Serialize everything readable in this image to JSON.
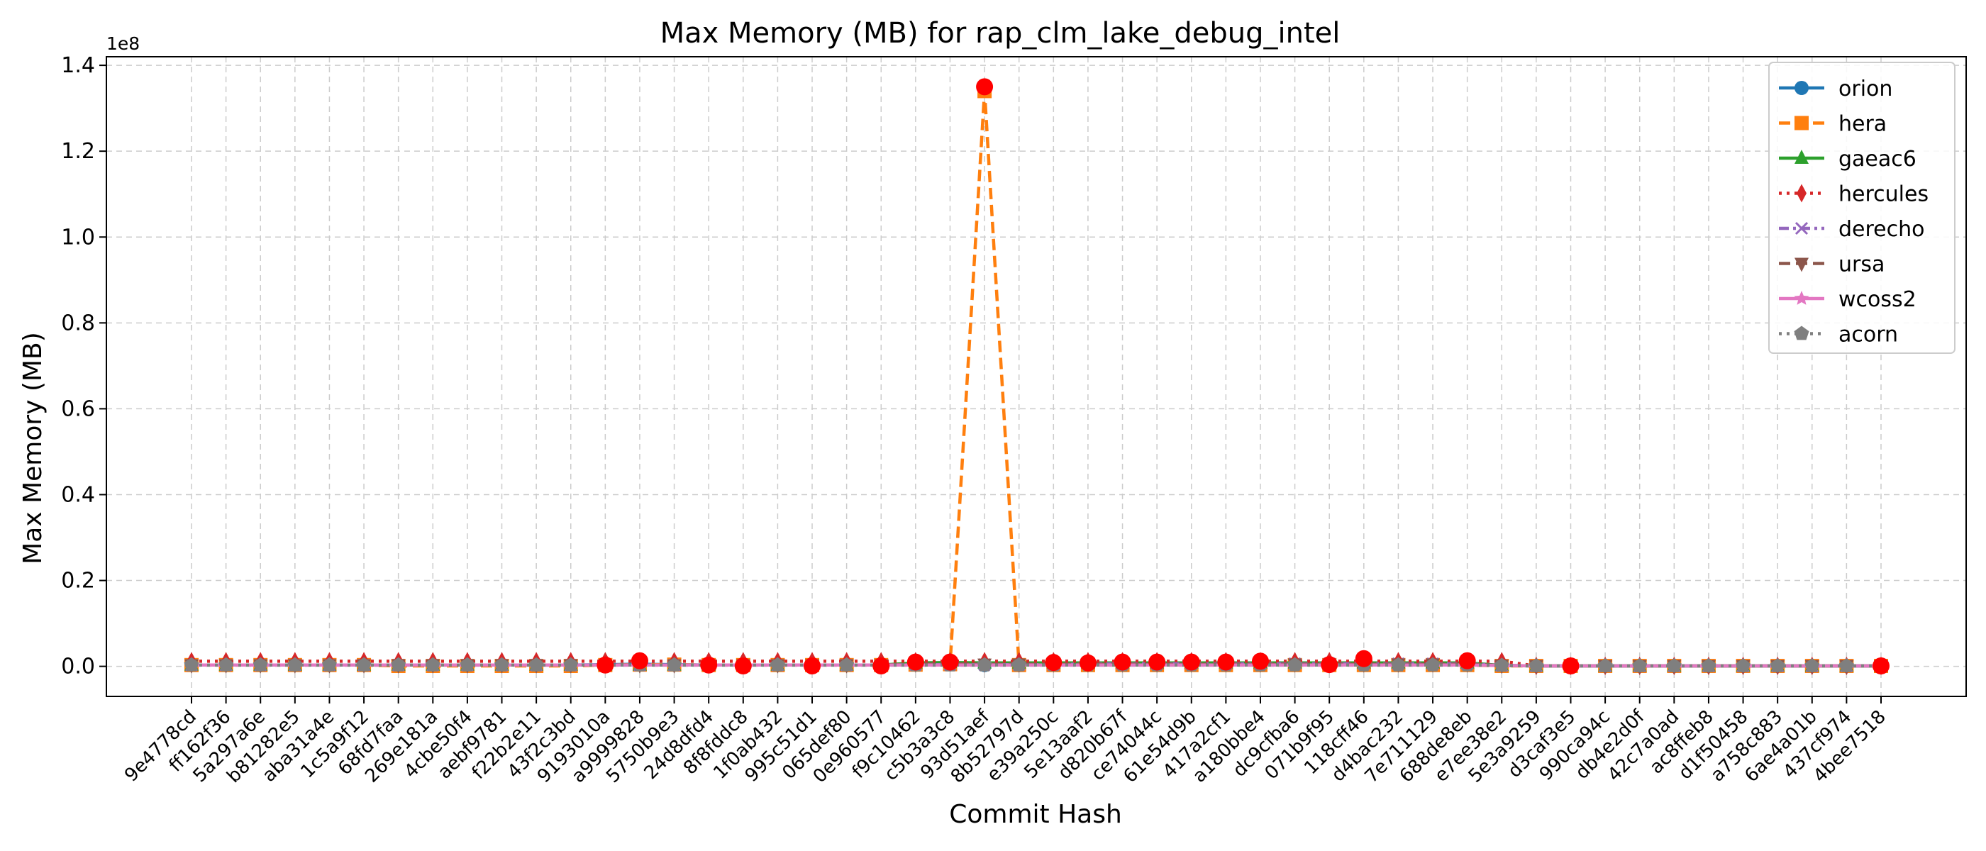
{
  "chart_data": {
    "type": "line",
    "title": "Max Memory (MB) for rap_clm_lake_debug_intel",
    "xlabel": "Commit Hash",
    "ylabel": "Max Memory (MB)",
    "y_offset_label": "1e8",
    "y_multiplier": 100000000,
    "ylim": [
      -0.07,
      1.42
    ],
    "yticks": [
      0.0,
      0.2,
      0.4,
      0.6,
      0.8,
      1.0,
      1.2,
      1.4
    ],
    "ytick_labels": [
      "0.0",
      "0.2",
      "0.4",
      "0.6",
      "0.8",
      "1.0",
      "1.2",
      "1.4"
    ],
    "grid": true,
    "legend_position": "top-right",
    "categories": [
      "9e4778cd",
      "ff162f36",
      "5a297a6e",
      "b81282e5",
      "aba31a4e",
      "1c5a9f12",
      "68fd7faa",
      "269e181a",
      "4cbe50f4",
      "aebf9781",
      "f22b2e11",
      "43f2c3bd",
      "9193010a",
      "a9999828",
      "5750b9e3",
      "24d8dfd4",
      "8f8fddc8",
      "1f0ab432",
      "995c51d1",
      "065def80",
      "0e960577",
      "f9c10462",
      "c5b3a3c8",
      "93d51aef",
      "8b52797d",
      "e39a250c",
      "5e13aaf2",
      "d820b67f",
      "ce74044c",
      "61e54d9b",
      "417a2cf1",
      "a180bbe4",
      "dc9cfba6",
      "071b9f95",
      "118cff46",
      "d4bac232",
      "7e711129",
      "688de8eb",
      "e7ee38e2",
      "5e3a9259",
      "d3caf3e5",
      "990ca94c",
      "db4e2d0f",
      "42c7a0ad",
      "ac8ffeb8",
      "d1f50458",
      "a758c883",
      "6ae4a01b",
      "437cf974",
      "4bee7518"
    ],
    "series": [
      {
        "name": "orion",
        "color": "#1f77b4",
        "dash": "solid",
        "marker": "circle",
        "values": [
          0.003,
          0.003,
          0.003,
          0.003,
          0.003,
          0.003,
          0.003,
          0.003,
          0.003,
          0.003,
          0.003,
          0.003,
          0.004,
          0.005,
          0.004,
          0.003,
          0.003,
          0.003,
          0.003,
          0.003,
          0.003,
          0.004,
          0.005,
          0.003,
          0.003,
          0.004,
          0.004,
          0.004,
          0.005,
          0.005,
          0.005,
          0.005,
          0.004,
          0.004,
          0.004,
          0.005,
          0.005,
          0.005,
          0.002,
          0.001,
          0.001,
          0.001,
          0.001,
          0.001,
          0.001,
          0.001,
          0.001,
          0.001,
          0.001,
          0.001
        ]
      },
      {
        "name": "hera",
        "color": "#ff7f0e",
        "dash": "dashed",
        "marker": "square",
        "values": [
          0.003,
          0.003,
          0.003,
          0.003,
          0.003,
          0.003,
          0.001,
          0.001,
          0.001,
          0.001,
          0.001,
          0.001,
          0.003,
          0.004,
          0.004,
          0.003,
          0.003,
          0.003,
          0.003,
          0.003,
          0.003,
          0.004,
          0.005,
          1.34,
          0.003,
          0.003,
          0.003,
          0.003,
          0.003,
          0.003,
          0.003,
          0.003,
          0.003,
          0.003,
          0.003,
          0.003,
          0.003,
          0.003,
          0.001,
          0.001,
          0.001,
          0.001,
          0.001,
          0.001,
          0.001,
          0.001,
          0.001,
          0.001,
          0.001,
          0.001
        ]
      },
      {
        "name": "gaeac6",
        "color": "#2ca02c",
        "dash": "solid",
        "marker": "triangle-up",
        "values": [
          0.003,
          0.003,
          0.003,
          0.003,
          0.003,
          0.003,
          0.003,
          0.003,
          0.003,
          0.003,
          0.003,
          0.003,
          0.003,
          0.003,
          0.003,
          0.003,
          0.003,
          0.003,
          0.003,
          0.003,
          0.003,
          0.008,
          0.009,
          0.008,
          0.008,
          0.008,
          0.008,
          0.008,
          0.008,
          0.008,
          0.008,
          0.008,
          0.008,
          0.008,
          0.008,
          0.008,
          0.008,
          0.008,
          0.002,
          0.001,
          0.001,
          0.001,
          0.001,
          0.001,
          0.001,
          0.001,
          0.001,
          0.001,
          0.001,
          0.001
        ]
      },
      {
        "name": "hercules",
        "color": "#d62728",
        "dash": "dotted",
        "marker": "diamond",
        "values": [
          0.012,
          0.012,
          0.012,
          0.012,
          0.012,
          0.012,
          0.012,
          0.012,
          0.012,
          0.012,
          0.012,
          0.012,
          0.012,
          0.012,
          0.012,
          0.012,
          0.012,
          0.012,
          0.012,
          0.012,
          0.012,
          0.012,
          0.012,
          0.012,
          0.012,
          0.012,
          0.012,
          0.012,
          0.012,
          0.012,
          0.012,
          0.012,
          0.012,
          0.012,
          0.012,
          0.012,
          0.012,
          0.012,
          0.012,
          0.001,
          0.001,
          0.001,
          0.001,
          0.001,
          0.001,
          0.001,
          0.001,
          0.001,
          0.001,
          0.001
        ]
      },
      {
        "name": "derecho",
        "color": "#9467bd",
        "dash": "dashdot",
        "marker": "x",
        "values": [
          0.003,
          0.003,
          0.003,
          0.003,
          0.003,
          0.003,
          0.003,
          0.003,
          0.003,
          0.003,
          0.003,
          0.003,
          0.003,
          0.003,
          0.003,
          0.003,
          0.003,
          0.003,
          0.003,
          0.003,
          0.003,
          0.004,
          0.004,
          0.004,
          0.004,
          0.004,
          0.006,
          0.006,
          0.006,
          0.006,
          0.006,
          0.006,
          0.006,
          0.006,
          0.006,
          0.006,
          0.006,
          0.006,
          0.002,
          0.001,
          0.001,
          0.001,
          0.001,
          0.001,
          0.001,
          0.001,
          0.001,
          0.001,
          0.001,
          0.001
        ]
      },
      {
        "name": "ursa",
        "color": "#8c564b",
        "dash": "dashed",
        "marker": "triangle-down",
        "values": [
          0.003,
          0.003,
          0.003,
          0.003,
          0.003,
          0.003,
          0.003,
          0.003,
          0.003,
          0.003,
          0.003,
          0.003,
          0.003,
          0.003,
          0.003,
          0.003,
          0.003,
          0.003,
          0.003,
          0.003,
          0.003,
          0.005,
          0.006,
          0.005,
          0.005,
          0.005,
          0.005,
          0.005,
          0.005,
          0.005,
          0.005,
          0.005,
          0.005,
          0.005,
          0.005,
          0.005,
          0.005,
          0.005,
          0.002,
          0.001,
          0.001,
          0.001,
          0.001,
          0.001,
          0.001,
          0.001,
          0.001,
          0.001,
          0.001,
          0.001
        ]
      },
      {
        "name": "wcoss2",
        "color": "#e377c2",
        "dash": "solid",
        "marker": "star",
        "values": [
          0.003,
          0.003,
          0.003,
          0.003,
          0.003,
          0.003,
          0.003,
          0.003,
          0.003,
          0.003,
          0.003,
          0.003,
          0.003,
          0.003,
          0.003,
          0.003,
          0.003,
          0.003,
          0.003,
          0.003,
          0.003,
          0.003,
          0.003,
          0.003,
          0.003,
          0.003,
          0.003,
          0.003,
          0.003,
          0.003,
          0.003,
          0.003,
          0.003,
          0.003,
          0.003,
          0.003,
          0.003,
          0.003,
          0.002,
          0.001,
          0.001,
          0.001,
          0.001,
          0.001,
          0.001,
          0.001,
          0.001,
          0.001,
          0.001,
          0.001
        ]
      },
      {
        "name": "acorn",
        "color": "#7f7f7f",
        "dash": "dotted",
        "marker": "pentagon",
        "values": [
          0.003,
          0.003,
          0.003,
          0.003,
          0.003,
          0.003,
          0.003,
          0.003,
          0.003,
          0.003,
          0.003,
          0.003,
          0.003,
          0.003,
          0.003,
          0.003,
          0.003,
          0.003,
          0.003,
          0.003,
          0.003,
          0.003,
          0.003,
          0.003,
          0.003,
          0.003,
          0.003,
          0.003,
          0.003,
          0.003,
          0.003,
          0.003,
          0.003,
          0.003,
          0.003,
          0.003,
          0.003,
          0.003,
          0.002,
          0.001,
          0.001,
          0.001,
          0.001,
          0.001,
          0.001,
          0.001,
          0.001,
          0.001,
          0.001,
          0.001
        ]
      }
    ],
    "highlight_color": "#ff0000",
    "highlights": [
      {
        "x": "9193010a",
        "y": 0.003
      },
      {
        "x": "a9999828",
        "y": 0.013
      },
      {
        "x": "24d8dfd4",
        "y": 0.003
      },
      {
        "x": "8f8fddc8",
        "y": 0.001
      },
      {
        "x": "995c51d1",
        "y": 0.001
      },
      {
        "x": "0e960577",
        "y": 0.001
      },
      {
        "x": "f9c10462",
        "y": 0.01
      },
      {
        "x": "c5b3a3c8",
        "y": 0.01
      },
      {
        "x": "93d51aef",
        "y": 1.35
      },
      {
        "x": "e39a250c",
        "y": 0.009
      },
      {
        "x": "5e13aaf2",
        "y": 0.008
      },
      {
        "x": "d820b67f",
        "y": 0.01
      },
      {
        "x": "ce74044c",
        "y": 0.01
      },
      {
        "x": "61e54d9b",
        "y": 0.01
      },
      {
        "x": "417a2cf1",
        "y": 0.01
      },
      {
        "x": "a180bbe4",
        "y": 0.012
      },
      {
        "x": "071b9f95",
        "y": 0.004
      },
      {
        "x": "118cff46",
        "y": 0.018
      },
      {
        "x": "688de8eb",
        "y": 0.013
      },
      {
        "x": "d3caf3e5",
        "y": 0.001
      },
      {
        "x": "4bee7518",
        "y": 0.001
      }
    ]
  }
}
